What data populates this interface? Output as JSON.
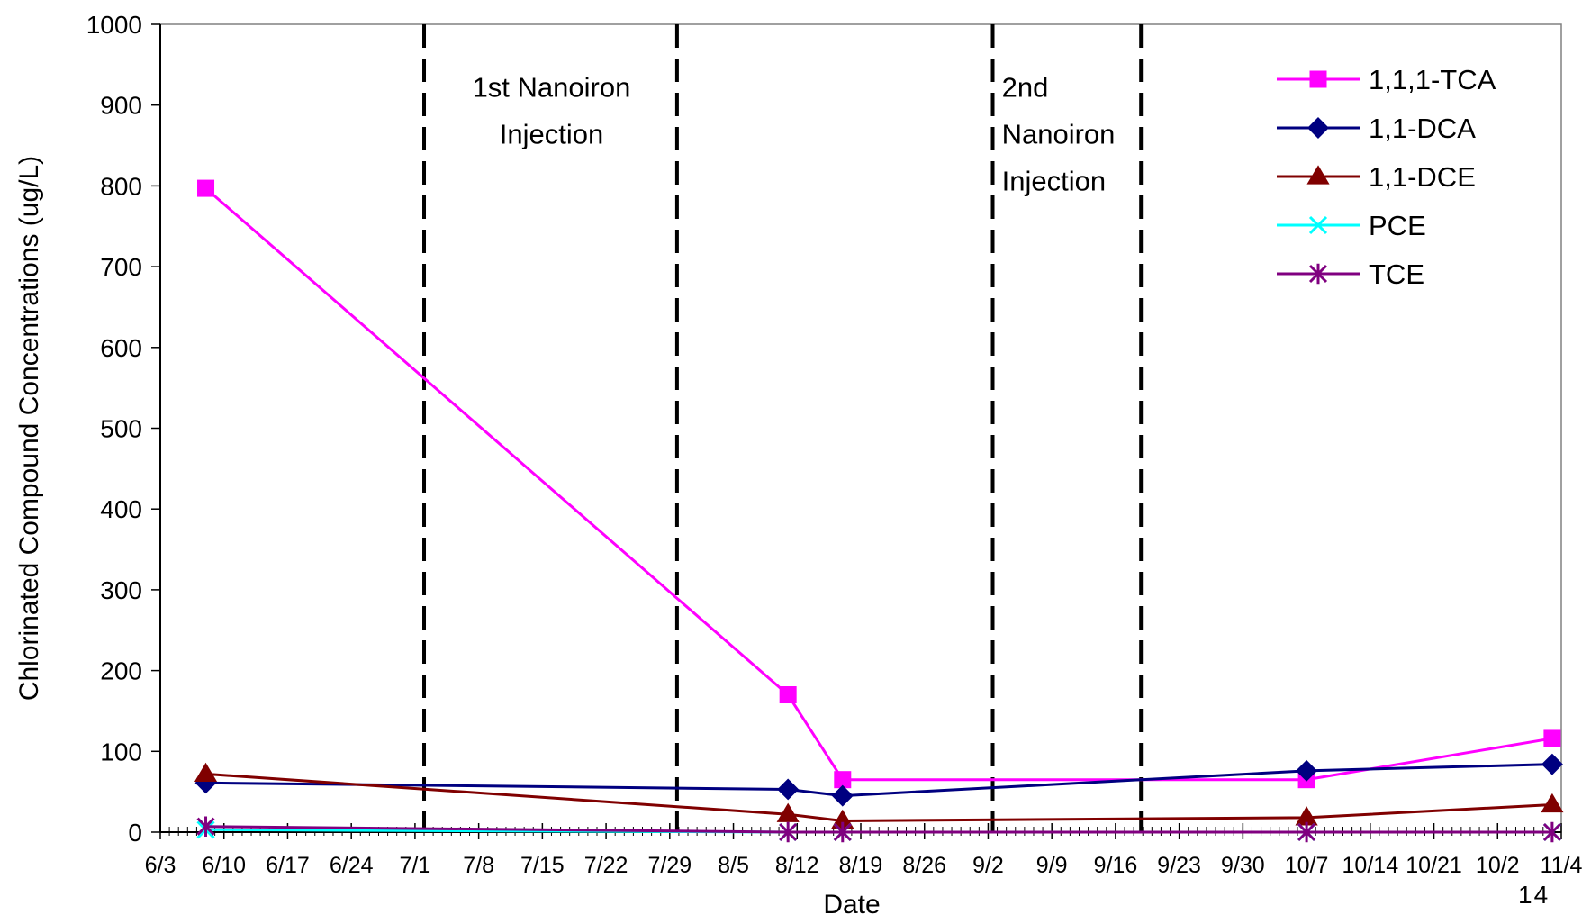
{
  "page_number": "14",
  "chart_data": {
    "type": "line",
    "xlabel": "Date",
    "ylabel": "Chlorinated Compound Concentrations (ug/L)",
    "x_tick_labels": [
      "6/3",
      "6/10",
      "6/17",
      "6/24",
      "7/1",
      "7/8",
      "7/15",
      "7/22",
      "7/29",
      "8/5",
      "8/12",
      "8/19",
      "8/26",
      "9/2",
      "9/9",
      "9/16",
      "9/23",
      "9/30",
      "10/7",
      "10/14",
      "10/21",
      "10/2",
      "11/4"
    ],
    "x_tick_days": [
      0,
      7,
      14,
      21,
      28,
      35,
      42,
      49,
      56,
      63,
      70,
      77,
      84,
      91,
      98,
      105,
      112,
      119,
      126,
      133,
      140,
      147,
      154
    ],
    "xlim_days": [
      0,
      154
    ],
    "ylim": [
      0,
      1000
    ],
    "y_ticks": [
      0,
      100,
      200,
      300,
      400,
      500,
      600,
      700,
      800,
      900,
      1000
    ],
    "grid": false,
    "legend_position": "top-right",
    "annotations": [
      {
        "lines": [
          "1st Nanoiron",
          "Injection"
        ],
        "x_day_center": 43,
        "y_value": 935,
        "anchor": "middle"
      },
      {
        "lines": [
          "2nd",
          "Nanoiron",
          "Injection"
        ],
        "x_day_start": 92.5,
        "y_value": 935,
        "anchor": "start"
      }
    ],
    "vertical_lines": [
      {
        "x": "7/2",
        "day": 29
      },
      {
        "x": "7/30",
        "day": 56.8
      },
      {
        "x": "9/3",
        "day": 91.5
      },
      {
        "x": "9/19",
        "day": 107.8
      }
    ],
    "series": [
      {
        "name": "1,1,1-TCA",
        "color": "#FF00FF",
        "marker": "square",
        "points": [
          {
            "x": "6/8",
            "y": 797
          },
          {
            "x": "8/11",
            "y": 170
          },
          {
            "x": "8/17",
            "y": 65
          },
          {
            "x": "10/7",
            "y": 65
          },
          {
            "x": "11/3",
            "y": 116
          }
        ]
      },
      {
        "name": "1,1-DCA",
        "color": "#000080",
        "marker": "diamond",
        "points": [
          {
            "x": "6/8",
            "y": 61
          },
          {
            "x": "8/11",
            "y": 53
          },
          {
            "x": "8/17",
            "y": 45
          },
          {
            "x": "10/7",
            "y": 76
          },
          {
            "x": "11/3",
            "y": 84
          }
        ]
      },
      {
        "name": "1,1-DCE",
        "color": "#800000",
        "marker": "triangle",
        "points": [
          {
            "x": "6/8",
            "y": 72
          },
          {
            "x": "8/11",
            "y": 22
          },
          {
            "x": "8/17",
            "y": 14
          },
          {
            "x": "10/7",
            "y": 18
          },
          {
            "x": "11/3",
            "y": 34
          }
        ]
      },
      {
        "name": "PCE",
        "color": "#00FFFF",
        "marker": "x",
        "points": [
          {
            "x": "6/8",
            "y": 3
          },
          {
            "x": "8/11",
            "y": 0
          },
          {
            "x": "8/17",
            "y": 0
          },
          {
            "x": "10/7",
            "y": 0
          },
          {
            "x": "11/3",
            "y": 0
          }
        ]
      },
      {
        "name": "TCE",
        "color": "#800080",
        "marker": "star",
        "points": [
          {
            "x": "6/8",
            "y": 7
          },
          {
            "x": "8/11",
            "y": 0
          },
          {
            "x": "8/17",
            "y": 0
          },
          {
            "x": "10/7",
            "y": 0
          },
          {
            "x": "11/3",
            "y": 0
          }
        ]
      }
    ]
  }
}
